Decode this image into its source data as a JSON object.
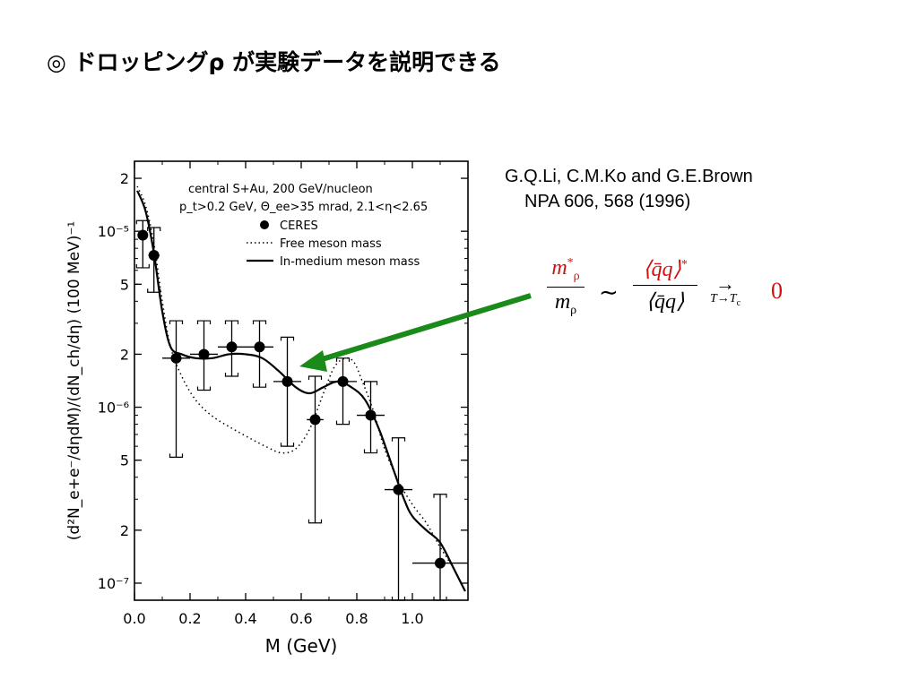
{
  "slide": {
    "title": "◎ ドロッピングρ が実験データを説明できる"
  },
  "reference": {
    "line1": "G.Q.Li, C.M.Ko and G.E.Brown",
    "line2": "NPA 606, 568 (1996)"
  },
  "formula": {
    "lhs_num": "m",
    "lhs_num_sup": "*",
    "lhs_num_sub": "ρ",
    "lhs_den": "m",
    "lhs_den_sub": "ρ",
    "sim": "∼",
    "rhs_num": "⟨q̄q⟩",
    "rhs_num_sup": "*",
    "rhs_den": "⟨q̄q⟩",
    "arrow": "→",
    "limit": "T→T",
    "limit_sub": "c",
    "result": "0"
  },
  "colors": {
    "arrow": "#1a8a1a",
    "formula_red": "#d01010"
  },
  "chart_data": {
    "type": "scatter",
    "xlabel": "M  (GeV)",
    "ylabel": "(d²N_e+e⁻/dηdM)/(dN_ch/dη)   (100 MeV)⁻¹",
    "xlim": [
      0.0,
      1.2
    ],
    "ylim": [
      8e-08,
      2.5e-05
    ],
    "y_scale": "log",
    "x_ticks": [
      "0.0",
      "0.2",
      "0.4",
      "0.6",
      "0.8",
      "1.0"
    ],
    "x_tick_values": [
      0.0,
      0.2,
      0.4,
      0.6,
      0.8,
      1.0
    ],
    "y_ticks": [
      "2",
      "10⁻⁵",
      "5",
      "2",
      "10⁻⁶",
      "5",
      "2",
      "10⁻⁷"
    ],
    "y_tick_values": [
      2e-05,
      1e-05,
      5e-06,
      2e-06,
      1e-06,
      5e-07,
      2e-07,
      1e-07
    ],
    "annotation": {
      "line1": "central S+Au, 200 GeV/nucleon",
      "line2": "p_t>0.2 GeV, Θ_ee>35 mrad, 2.1<η<2.65"
    },
    "legend": [
      "CERES",
      "Free meson mass",
      "In-medium meson mass"
    ],
    "series": [
      {
        "name": "CERES",
        "points": [
          {
            "x": 0.03,
            "y": 9.5e-06,
            "xerr": 0.015,
            "ylo": 6.2e-06,
            "yhi": 1.15e-05
          },
          {
            "x": 0.07,
            "y": 7.3e-06,
            "xerr": 0.02,
            "ylo": 4.5e-06,
            "yhi": 1.05e-05
          },
          {
            "x": 0.15,
            "y": 1.9e-06,
            "xerr": 0.05,
            "ylo": 5.2e-07,
            "yhi": 3.1e-06
          },
          {
            "x": 0.25,
            "y": 2e-06,
            "xerr": 0.05,
            "ylo": 1.25e-06,
            "yhi": 3.1e-06
          },
          {
            "x": 0.35,
            "y": 2.2e-06,
            "xerr": 0.05,
            "ylo": 1.5e-06,
            "yhi": 3.1e-06
          },
          {
            "x": 0.45,
            "y": 2.2e-06,
            "xerr": 0.05,
            "ylo": 1.3e-06,
            "yhi": 3.1e-06
          },
          {
            "x": 0.55,
            "y": 1.4e-06,
            "xerr": 0.05,
            "ylo": 6e-07,
            "yhi": 2.5e-06
          },
          {
            "x": 0.65,
            "y": 8.5e-07,
            "xerr": 0.03,
            "ylo": 2.2e-07,
            "yhi": 1.5e-06
          },
          {
            "x": 0.75,
            "y": 1.4e-06,
            "xerr": 0.05,
            "ylo": 8e-07,
            "yhi": 1.9e-06
          },
          {
            "x": 0.85,
            "y": 9e-07,
            "xerr": 0.05,
            "ylo": 5.5e-07,
            "yhi": 1.4e-06
          },
          {
            "x": 0.95,
            "y": 3.4e-07,
            "xerr": 0.05,
            "ylo": 8e-08,
            "yhi": 6.7e-07
          },
          {
            "x": 1.1,
            "y": 1.3e-07,
            "xerr": 0.1,
            "ylo": 8e-08,
            "yhi": 3.2e-07
          }
        ]
      },
      {
        "name": "Free meson mass",
        "style": "dotted",
        "x": [
          0.01,
          0.04,
          0.07,
          0.1,
          0.13,
          0.17,
          0.22,
          0.28,
          0.35,
          0.42,
          0.48,
          0.53,
          0.58,
          0.63,
          0.68,
          0.72,
          0.76,
          0.79,
          0.82,
          0.86,
          0.9,
          0.95,
          1.0,
          1.05,
          1.1,
          1.15,
          1.19
        ],
        "y": [
          1.8e-05,
          1.4e-05,
          8.5e-06,
          4e-06,
          2.2e-06,
          1.5e-06,
          1.1e-06,
          8.9e-07,
          7.6e-07,
          6.6e-07,
          5.9e-07,
          5.5e-07,
          5.8e-07,
          7.5e-07,
          1.2e-06,
          1.7e-06,
          1.9e-06,
          1.8e-06,
          1.4e-06,
          9.5e-07,
          5.8e-07,
          3.8e-07,
          2.8e-07,
          2.2e-07,
          1.6e-07,
          1.2e-07,
          9e-08
        ]
      },
      {
        "name": "In-medium meson mass",
        "style": "solid",
        "x": [
          0.01,
          0.04,
          0.07,
          0.1,
          0.13,
          0.17,
          0.22,
          0.28,
          0.34,
          0.4,
          0.46,
          0.52,
          0.58,
          0.63,
          0.68,
          0.73,
          0.78,
          0.83,
          0.88,
          0.93,
          0.97,
          1.0,
          1.05,
          1.1,
          1.15,
          1.19
        ],
        "y": [
          1.7e-05,
          1.3e-05,
          7.5e-06,
          3.5e-06,
          2.2e-06,
          2e-06,
          1.9e-06,
          1.9e-06,
          2e-06,
          2e-06,
          1.9e-06,
          1.6e-06,
          1.3e-06,
          1.2e-06,
          1.3e-06,
          1.4e-06,
          1.3e-06,
          1.1e-06,
          7.5e-07,
          4.5e-07,
          3e-07,
          2.4e-07,
          2e-07,
          1.7e-07,
          1.2e-07,
          9e-08
        ]
      }
    ]
  }
}
